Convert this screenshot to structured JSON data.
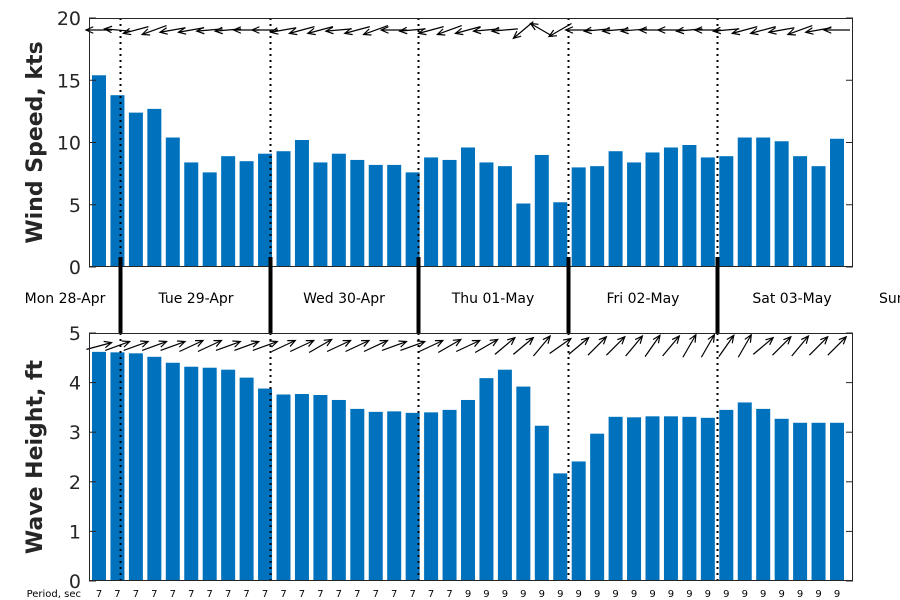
{
  "colors": {
    "bar": "#0072BD",
    "axis": "#262626",
    "arrow": "#000000"
  },
  "chart_data": [
    {
      "type": "bar",
      "ylabel": "Wind Speed, kts",
      "ylim": [
        0,
        20
      ],
      "yticks": [
        "0",
        "5",
        "10",
        "15",
        "20"
      ],
      "values": [
        15.4,
        13.8,
        12.4,
        12.7,
        10.4,
        8.4,
        7.6,
        8.9,
        8.5,
        9.1,
        9.3,
        10.2,
        8.4,
        9.1,
        8.6,
        8.2,
        8.2,
        7.6,
        8.8,
        8.6,
        9.6,
        8.4,
        8.1,
        5.1,
        9.0,
        5.2,
        8.0,
        8.1,
        9.3,
        8.4,
        9.2,
        9.6,
        9.8,
        8.8,
        8.9,
        10.4,
        10.4,
        10.1,
        8.9,
        8.1,
        10.3
      ],
      "direction_deg": [
        180,
        175,
        195,
        200,
        190,
        190,
        185,
        185,
        180,
        180,
        190,
        195,
        195,
        185,
        195,
        200,
        180,
        185,
        195,
        200,
        195,
        185,
        185,
        220,
        150,
        210,
        180,
        185,
        185,
        185,
        180,
        180,
        185,
        180,
        185,
        195,
        195,
        190,
        200,
        190,
        180
      ]
    },
    {
      "type": "bar",
      "ylabel": "Wave Height, ft",
      "ylim": [
        0,
        5
      ],
      "yticks": [
        "0",
        "1",
        "2",
        "3",
        "4",
        "5"
      ],
      "values": [
        4.62,
        4.61,
        4.59,
        4.52,
        4.4,
        4.32,
        4.3,
        4.26,
        4.1,
        3.88,
        3.76,
        3.77,
        3.75,
        3.65,
        3.47,
        3.41,
        3.42,
        3.39,
        3.4,
        3.45,
        3.65,
        4.09,
        4.26,
        3.92,
        3.13,
        2.17,
        2.41,
        2.97,
        3.31,
        3.3,
        3.32,
        3.32,
        3.31,
        3.29,
        3.45,
        3.6,
        3.47,
        3.27,
        3.19,
        3.19,
        3.19
      ],
      "direction_deg": [
        15,
        20,
        20,
        20,
        20,
        25,
        25,
        20,
        20,
        20,
        25,
        25,
        30,
        25,
        25,
        25,
        20,
        20,
        25,
        30,
        25,
        30,
        40,
        40,
        50,
        35,
        40,
        45,
        45,
        50,
        55,
        50,
        60,
        60,
        55,
        60,
        40,
        45,
        50,
        45,
        45
      ],
      "period_label": "Period, sec",
      "periods": [
        "7",
        "7",
        "7",
        "7",
        "7",
        "7",
        "7",
        "7",
        "7",
        "7",
        "7",
        "7",
        "7",
        "7",
        "7",
        "7",
        "7",
        "7",
        "7",
        "7",
        "9",
        "9",
        "9",
        "9",
        "9",
        "9",
        "9",
        "9",
        "9",
        "9",
        "9",
        "9",
        "9",
        "9",
        "9",
        "9",
        "9",
        "9",
        "9",
        "9",
        "9"
      ]
    }
  ],
  "days": [
    "Mon 28-Apr",
    "Tue 29-Apr",
    "Wed 30-Apr",
    "Thu 01-May",
    "Fri 02-May",
    "Sat 03-May",
    "Sun"
  ]
}
